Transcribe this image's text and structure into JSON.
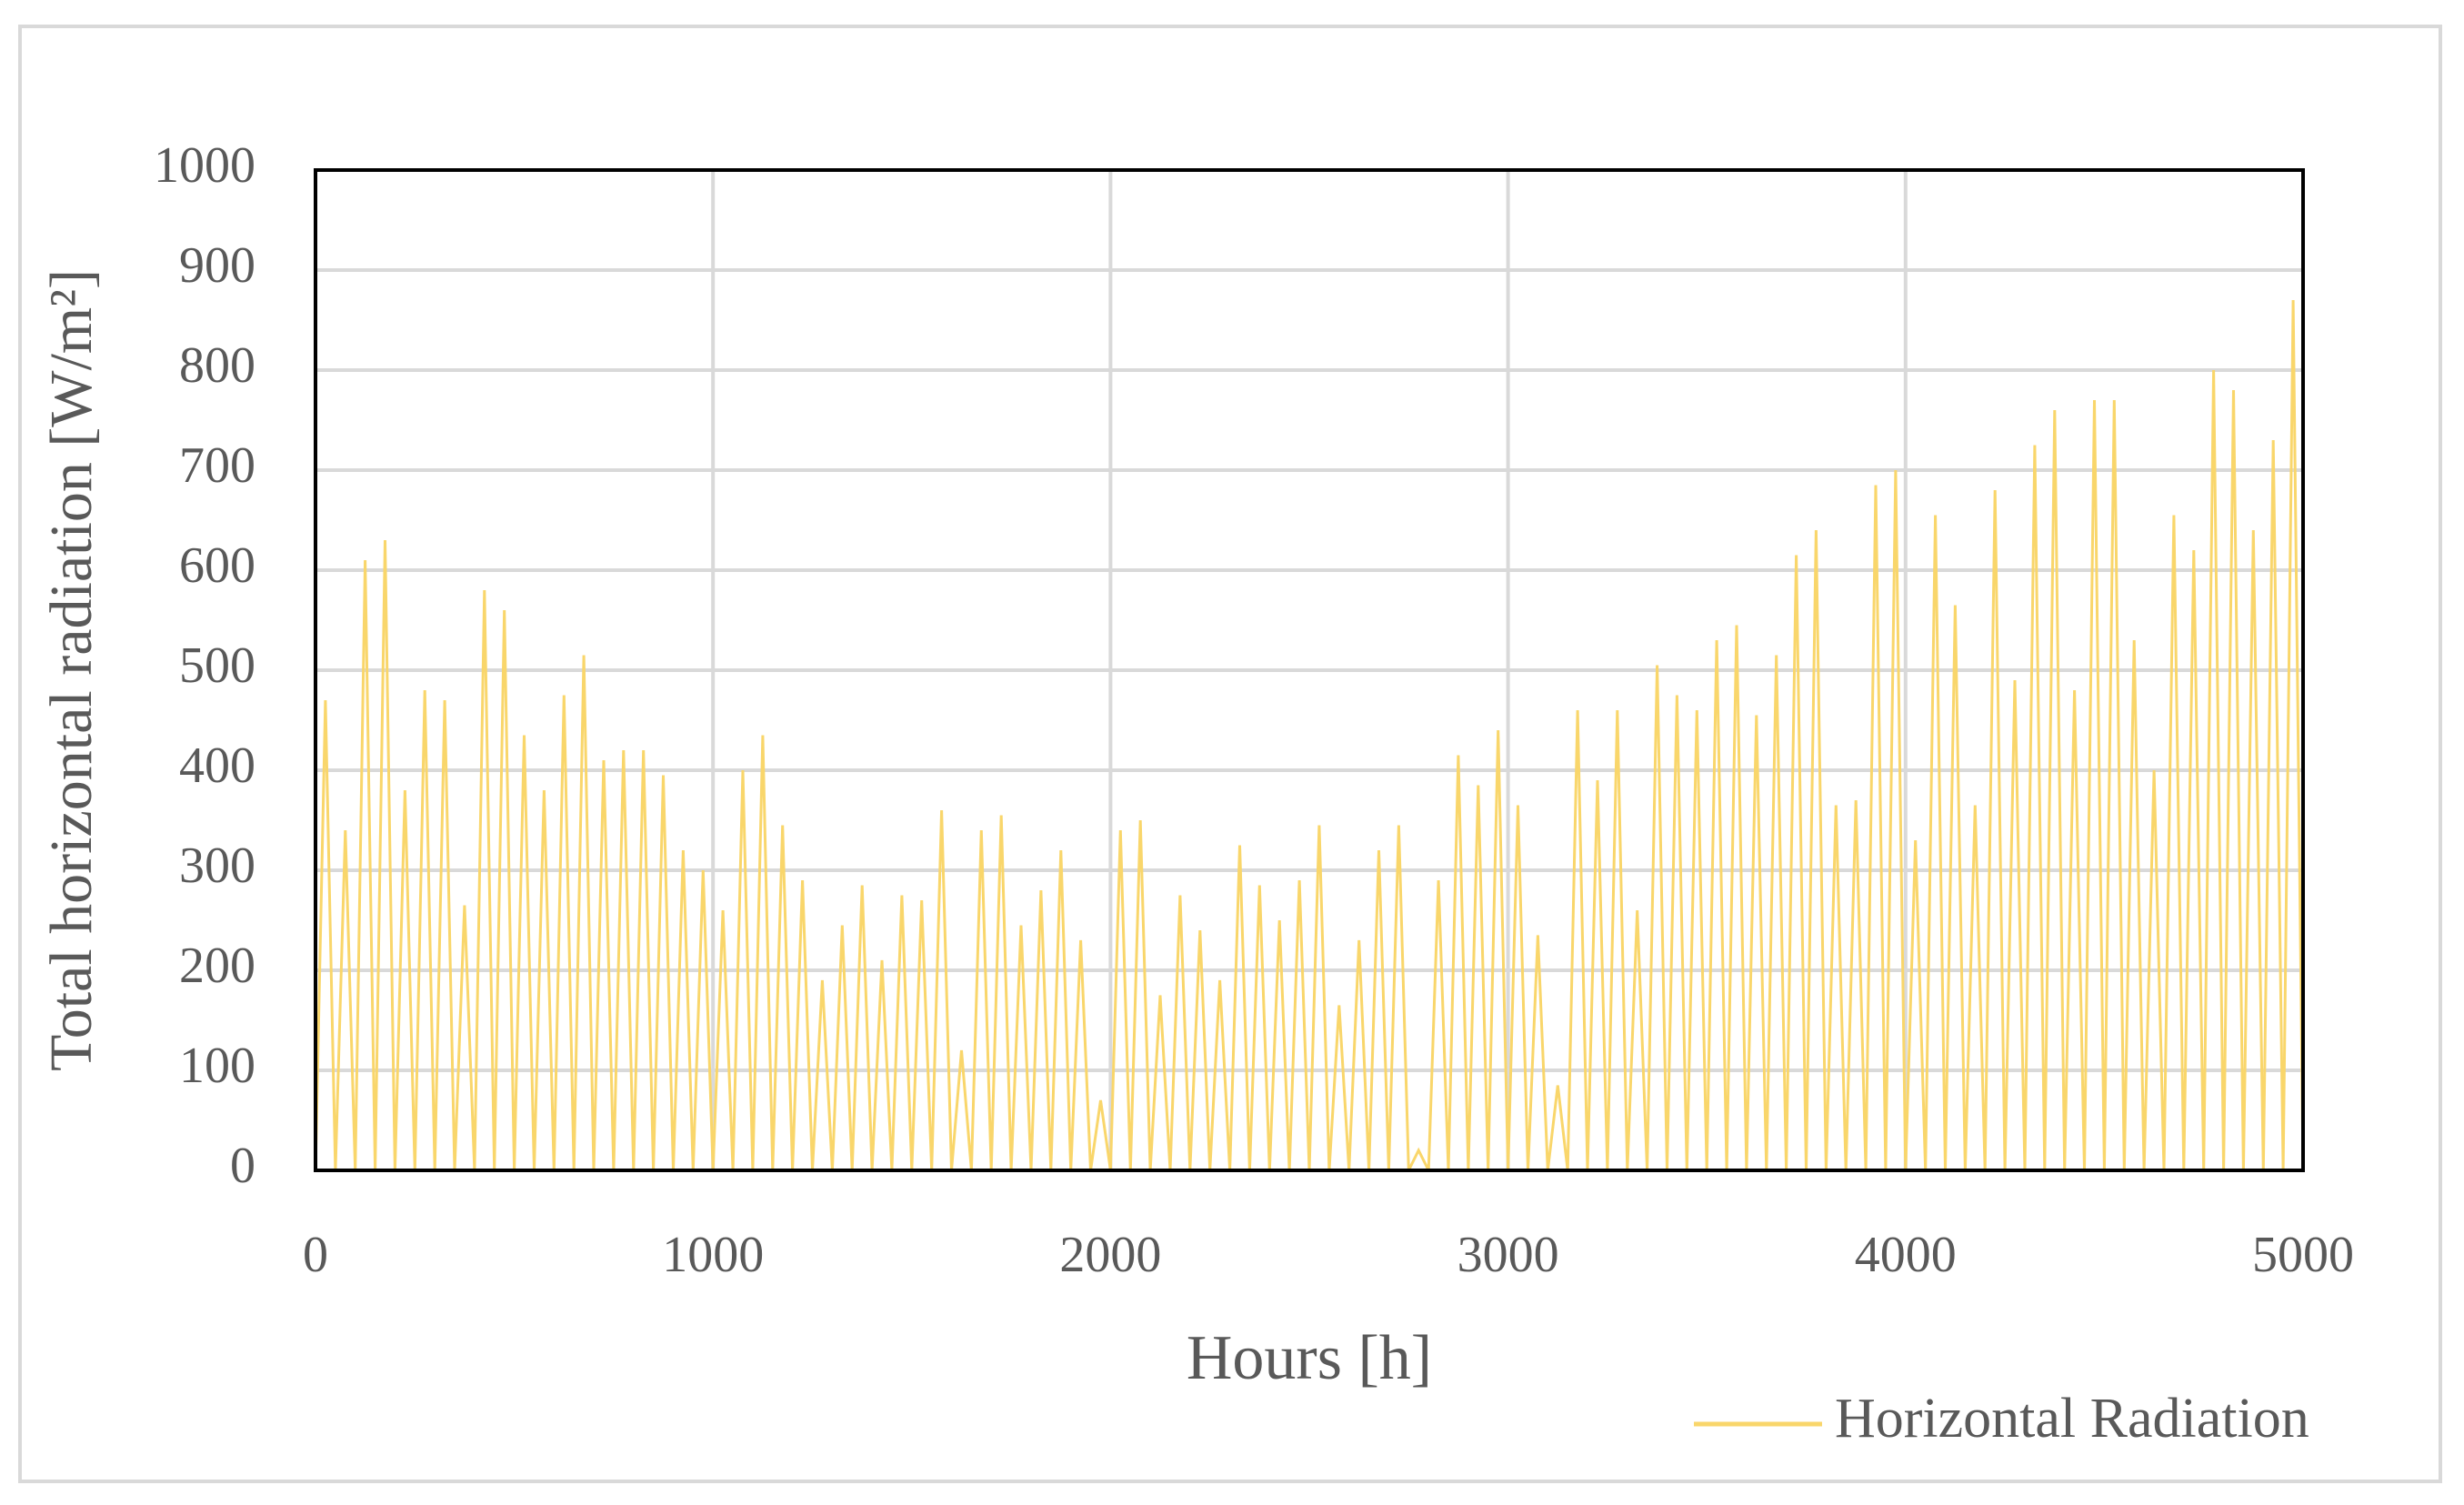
{
  "chart_data": {
    "type": "line",
    "x_label": "Hours [h]",
    "y_label": "Total horizontal radiation [W/m²]",
    "xlim": [
      0,
      5000
    ],
    "xticks": [
      0,
      1000,
      2000,
      3000,
      4000,
      5000
    ],
    "ylim": [
      0,
      1000
    ],
    "yticks": [
      0,
      100,
      200,
      300,
      400,
      500,
      600,
      700,
      800,
      900,
      1000
    ],
    "grid": true,
    "legend": "bottom-right",
    "x": [
      0,
      25,
      50,
      75,
      100,
      125,
      150,
      175,
      200,
      225,
      250,
      275,
      300,
      325,
      350,
      375,
      400,
      425,
      450,
      475,
      500,
      525,
      550,
      575,
      600,
      625,
      650,
      675,
      700,
      725,
      750,
      775,
      800,
      825,
      850,
      875,
      900,
      925,
      950,
      975,
      1000,
      1025,
      1050,
      1075,
      1100,
      1125,
      1150,
      1175,
      1200,
      1225,
      1250,
      1275,
      1300,
      1325,
      1350,
      1375,
      1400,
      1425,
      1450,
      1475,
      1500,
      1525,
      1550,
      1575,
      1600,
      1625,
      1650,
      1675,
      1700,
      1725,
      1750,
      1775,
      1800,
      1825,
      1850,
      1875,
      1900,
      1925,
      1950,
      1975,
      2000,
      2025,
      2050,
      2075,
      2100,
      2125,
      2150,
      2175,
      2200,
      2225,
      2250,
      2275,
      2300,
      2325,
      2350,
      2375,
      2400,
      2425,
      2450,
      2475,
      2500,
      2525,
      2550,
      2575,
      2600,
      2625,
      2650,
      2675,
      2700,
      2725,
      2750,
      2775,
      2800,
      2825,
      2850,
      2875,
      2900,
      2925,
      2950,
      2975,
      3000,
      3025,
      3050,
      3075,
      3100,
      3125,
      3150,
      3175,
      3200,
      3225,
      3250,
      3275,
      3300,
      3325,
      3350,
      3375,
      3400,
      3425,
      3450,
      3475,
      3500,
      3525,
      3550,
      3575,
      3600,
      3625,
      3650,
      3675,
      3700,
      3725,
      3750,
      3775,
      3800,
      3825,
      3850,
      3875,
      3900,
      3925,
      3950,
      3975,
      4000,
      4025,
      4050,
      4075,
      4100,
      4125,
      4150,
      4175,
      4200,
      4225,
      4250,
      4275,
      4300,
      4325,
      4350,
      4375,
      4400,
      4425,
      4450,
      4475,
      4500,
      4525,
      4550,
      4575,
      4600,
      4625,
      4650,
      4675,
      4700,
      4725,
      4750,
      4775,
      4800,
      4825,
      4850,
      4875,
      4900,
      4925,
      4950,
      4975,
      5000
    ],
    "series": [
      {
        "name": "Horizontal Radiation",
        "color": "#f9d66b",
        "values": [
          0,
          470,
          0,
          340,
          0,
          610,
          0,
          630,
          0,
          380,
          0,
          480,
          0,
          470,
          0,
          265,
          0,
          580,
          0,
          560,
          0,
          435,
          0,
          380,
          0,
          475,
          0,
          515,
          0,
          410,
          0,
          420,
          0,
          420,
          0,
          395,
          0,
          320,
          0,
          300,
          0,
          260,
          0,
          400,
          0,
          435,
          0,
          345,
          0,
          290,
          0,
          190,
          0,
          245,
          0,
          285,
          0,
          210,
          0,
          275,
          0,
          270,
          0,
          360,
          0,
          120,
          0,
          340,
          0,
          355,
          0,
          245,
          0,
          280,
          0,
          320,
          0,
          230,
          0,
          70,
          0,
          340,
          0,
          350,
          0,
          175,
          0,
          275,
          0,
          240,
          0,
          190,
          0,
          325,
          0,
          285,
          0,
          250,
          0,
          290,
          0,
          345,
          0,
          165,
          0,
          230,
          0,
          320,
          0,
          345,
          0,
          20,
          0,
          290,
          0,
          415,
          0,
          385,
          0,
          440,
          0,
          365,
          0,
          235,
          0,
          85,
          0,
          460,
          0,
          390,
          0,
          460,
          0,
          260,
          0,
          505,
          0,
          475,
          0,
          460,
          0,
          530,
          0,
          545,
          0,
          455,
          0,
          515,
          0,
          615,
          0,
          640,
          0,
          365,
          0,
          370,
          0,
          685,
          0,
          700,
          0,
          330,
          0,
          655,
          0,
          565,
          0,
          365,
          0,
          680,
          0,
          490,
          0,
          725,
          0,
          760,
          0,
          480,
          0,
          770,
          0,
          770,
          0,
          530,
          0,
          400,
          0,
          655,
          0,
          620,
          0,
          800,
          0,
          780,
          0,
          640,
          0,
          730,
          0,
          870,
          0
        ]
      }
    ]
  }
}
